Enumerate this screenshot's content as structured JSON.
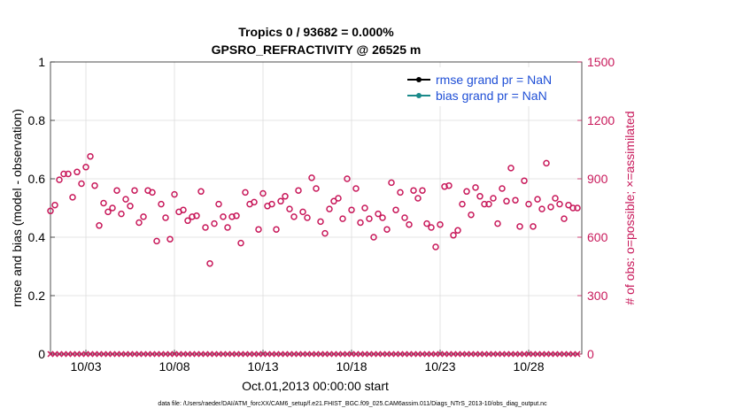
{
  "chart_data": {
    "type": "scatter",
    "title": "Tropics 0 / 93682 = 0.000%",
    "subtitle": "GPSRO_REFRACTIVITY @ 26525 m",
    "xlabel": "Oct.01,2013 00:00:00 start",
    "ylabel_left": "rmse and bias (model - observation)",
    "ylabel_right": "# of obs: o=possible; ×=assimilated",
    "ylim_left": [
      0,
      1
    ],
    "ylim_right": [
      0,
      1500
    ],
    "xlim": [
      1.0,
      31.0
    ],
    "x_ticks": [
      3,
      8,
      13,
      18,
      23,
      28
    ],
    "x_tick_labels": [
      "10/03",
      "10/08",
      "10/13",
      "10/18",
      "10/23",
      "10/28"
    ],
    "y_left_ticks": [
      0,
      0.2,
      0.4,
      0.6,
      0.8,
      1
    ],
    "y_left_tick_labels": [
      "0",
      "0.2",
      "0.4",
      "0.6",
      "0.8",
      "1"
    ],
    "y_right_ticks": [
      0,
      300,
      600,
      900,
      1200,
      1500
    ],
    "y_right_tick_labels": [
      "0",
      "300",
      "600",
      "900",
      "1200",
      "1500"
    ],
    "legend": [
      {
        "label": "rmse grand pr = NaN",
        "color": "#000000"
      },
      {
        "label": "bias grand pr = NaN",
        "color": "#1a8a8a"
      }
    ],
    "series": [
      {
        "name": "possible",
        "marker": "circle",
        "color": "#c8185a",
        "axis": "right",
        "x": [
          1.0,
          1.25,
          1.5,
          1.75,
          2.0,
          2.25,
          2.5,
          2.75,
          3.0,
          3.25,
          3.5,
          3.75,
          4.0,
          4.25,
          4.5,
          4.75,
          5.0,
          5.25,
          5.5,
          5.75,
          6.0,
          6.25,
          6.5,
          6.75,
          7.0,
          7.25,
          7.5,
          7.75,
          8.0,
          8.25,
          8.5,
          8.75,
          9.0,
          9.25,
          9.5,
          9.75,
          10.0,
          10.25,
          10.5,
          10.75,
          11.0,
          11.25,
          11.5,
          11.75,
          12.0,
          12.25,
          12.5,
          12.75,
          13.0,
          13.25,
          13.5,
          13.75,
          14.0,
          14.25,
          14.5,
          14.75,
          15.0,
          15.25,
          15.5,
          15.75,
          16.0,
          16.25,
          16.5,
          16.75,
          17.0,
          17.25,
          17.5,
          17.75,
          18.0,
          18.25,
          18.5,
          18.75,
          19.0,
          19.25,
          19.5,
          19.75,
          20.0,
          20.25,
          20.5,
          20.75,
          21.0,
          21.25,
          21.5,
          21.75,
          22.0,
          22.25,
          22.5,
          22.75,
          23.0,
          23.25,
          23.5,
          23.75,
          24.0,
          24.25,
          24.5,
          24.75,
          25.0,
          25.25,
          25.5,
          25.75,
          26.0,
          26.25,
          26.5,
          26.75,
          27.0,
          27.25,
          27.5,
          27.75,
          28.0,
          28.25,
          28.5,
          28.75,
          29.0,
          29.25,
          29.5,
          29.75,
          30.0,
          30.25,
          30.5,
          30.75
        ],
        "values": [
          735,
          765,
          895,
          925,
          925,
          805,
          935,
          875,
          960,
          1015,
          865,
          660,
          775,
          730,
          750,
          840,
          720,
          795,
          760,
          840,
          675,
          705,
          840,
          830,
          580,
          770,
          700,
          590,
          820,
          730,
          740,
          685,
          705,
          710,
          835,
          650,
          465,
          670,
          770,
          705,
          650,
          705,
          710,
          570,
          830,
          770,
          780,
          640,
          825,
          760,
          770,
          640,
          785,
          810,
          745,
          705,
          840,
          730,
          700,
          905,
          850,
          680,
          620,
          745,
          785,
          800,
          695,
          900,
          740,
          850,
          675,
          750,
          695,
          600,
          720,
          700,
          640,
          880,
          740,
          830,
          700,
          665,
          840,
          800,
          840,
          670,
          650,
          550,
          665,
          860,
          865,
          610,
          635,
          770,
          835,
          715,
          855,
          810,
          770,
          770,
          800,
          670,
          850,
          785,
          955,
          790,
          655,
          890,
          770,
          655,
          795,
          745,
          980,
          755,
          800,
          770,
          695,
          765,
          750,
          750
        ]
      },
      {
        "name": "assimilated",
        "marker": "x",
        "color": "#c8185a",
        "axis": "right",
        "values_all": 0
      }
    ]
  },
  "footer_text": "data file: /Users/raeder/DAI/ATM_forcXX/CAM6_setup/f.e21.FHIST_BGC.f09_025.CAM6assim.011/Diags_NTrS_2013-10/obs_diag_output.nc"
}
